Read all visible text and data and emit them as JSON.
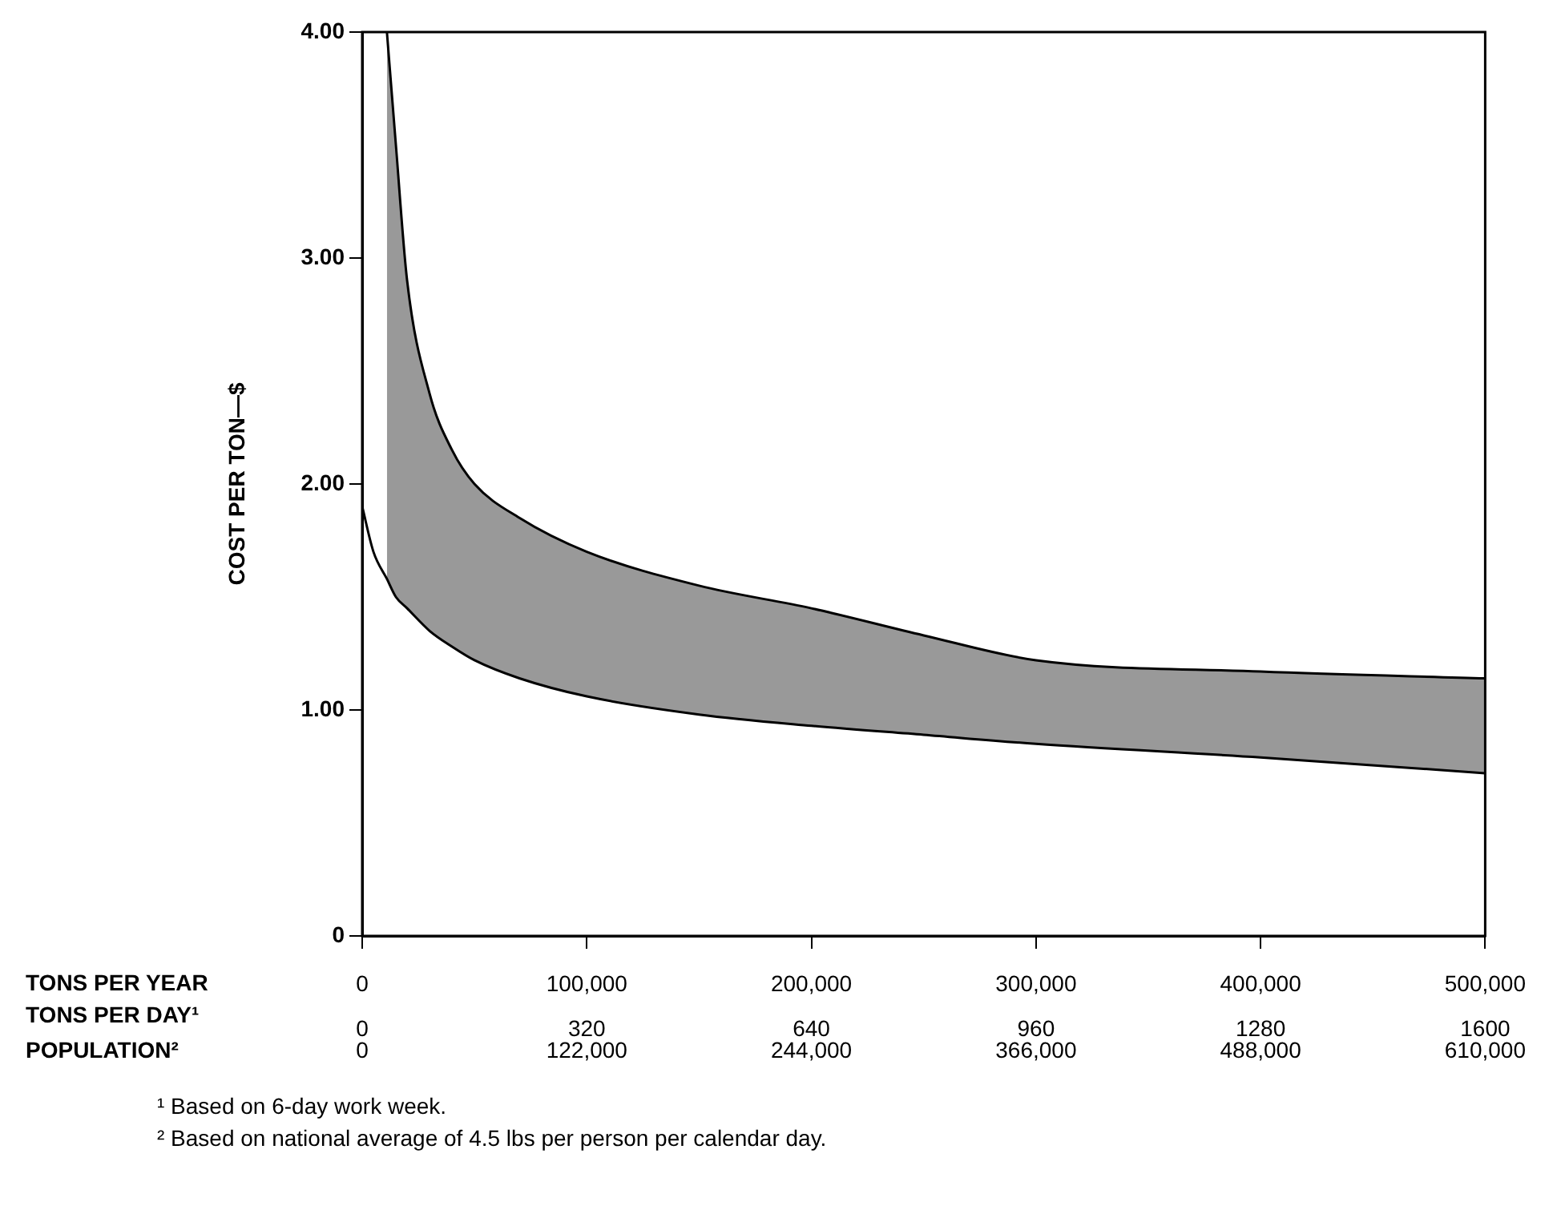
{
  "chart_data": {
    "type": "line",
    "ylabel": "COST PER TON—$",
    "xlabel": "TONS PER YEAR",
    "x2label": "TONS PER DAY¹",
    "xlim": [
      0,
      500000
    ],
    "xticks": [
      0,
      {
        "value": 100000,
        "label": "100,000"
      },
      {
        "value": 200000,
        "label": "200,000"
      },
      {
        "value": 300000,
        "label": "300,000"
      },
      {
        "value": 400000,
        "label": "400,000"
      },
      {
        "value": 500000,
        "label": "500,000"
      }
    ],
    "x2lim": [
      0,
      1600
    ],
    "x2ticks": [
      0,
      320,
      640,
      960,
      1280,
      1600
    ],
    "ylim": [
      0,
      4
    ],
    "yticks": [
      0,
      {
        "value": 1,
        "label": "1.00"
      },
      {
        "value": 2,
        "label": "2.00"
      },
      {
        "value": 3,
        "label": "3.00"
      },
      {
        "value": 4,
        "label": "4.00"
      }
    ],
    "marker": "none",
    "line_style": "solid",
    "legend": false,
    "series": [
      {
        "color": "#000000",
        "x": [
          0,
          5000,
          11000,
          15000,
          20000,
          30000,
          40000,
          50000,
          70000,
          100000,
          150000,
          200000,
          250000,
          300000,
          400000,
          500000
        ],
        "values": [
          1.9,
          1.7,
          1.58,
          1.5,
          1.45,
          1.35,
          1.28,
          1.22,
          1.14,
          1.06,
          0.98,
          0.93,
          0.89,
          0.85,
          0.79,
          0.72
        ],
        "upper": [
          null,
          null,
          4.0,
          3.5,
          2.9,
          2.4,
          2.15,
          2.0,
          1.85,
          1.7,
          1.55,
          1.45,
          1.33,
          1.22,
          1.17,
          1.14
        ],
        "lower": [
          null,
          null,
          1.58,
          1.5,
          1.45,
          1.35,
          1.28,
          1.22,
          1.14,
          1.06,
          0.98,
          0.93,
          0.89,
          0.85,
          0.79,
          0.72
        ]
      },
      {
        "color": "#000000",
        "x": [
          11000,
          15000,
          20000,
          30000,
          40000,
          50000,
          70000,
          100000,
          150000,
          200000,
          250000,
          300000,
          400000,
          500000
        ],
        "values": [
          4.0,
          3.5,
          2.9,
          2.4,
          2.15,
          2.0,
          1.85,
          1.7,
          1.55,
          1.45,
          1.33,
          1.22,
          1.17,
          1.14
        ]
      }
    ],
    "annotations": [
      "POPULATION²",
      "0",
      "122,000",
      "244,000",
      "366,000",
      "488,000",
      "610,000",
      "¹ Based on 6-day work week.",
      "² Based on national average of 4.5 lbs per person per calendar day."
    ]
  }
}
